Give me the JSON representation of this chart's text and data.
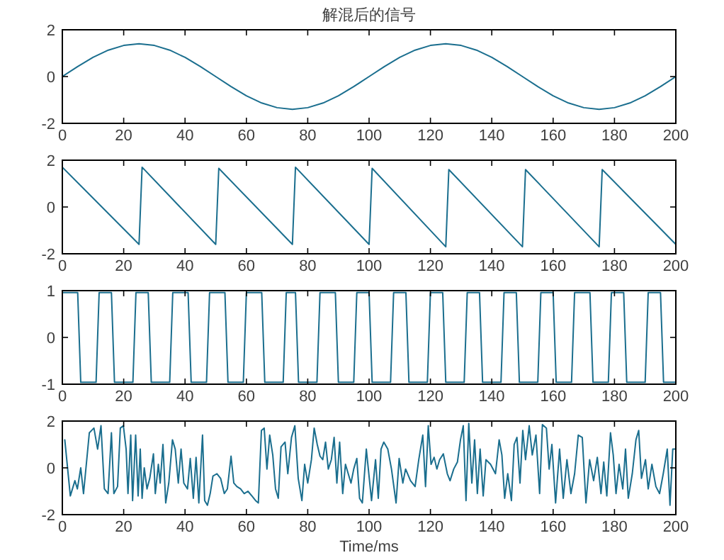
{
  "chart_data": [
    {
      "type": "line",
      "title": "解混后的信号",
      "color": "#1a6e8e",
      "xlim": [
        0,
        200
      ],
      "ylim": [
        -2,
        2
      ],
      "xticks": [
        0,
        20,
        40,
        60,
        80,
        100,
        120,
        140,
        160,
        180,
        200
      ],
      "yticks": [
        -2,
        0,
        2
      ],
      "x": [
        0,
        5,
        10,
        15,
        20,
        25,
        30,
        35,
        40,
        45,
        50,
        55,
        60,
        65,
        70,
        75,
        80,
        85,
        90,
        95,
        100,
        105,
        110,
        115,
        120,
        125,
        130,
        135,
        140,
        145,
        150,
        155,
        160,
        165,
        170,
        175,
        180,
        185,
        190,
        195,
        200
      ],
      "values": [
        0,
        0.43,
        0.82,
        1.13,
        1.33,
        1.4,
        1.33,
        1.13,
        0.82,
        0.43,
        0,
        -0.43,
        -0.82,
        -1.13,
        -1.33,
        -1.4,
        -1.33,
        -1.13,
        -0.82,
        -0.43,
        0,
        0.43,
        0.82,
        1.13,
        1.33,
        1.4,
        1.33,
        1.13,
        0.82,
        0.43,
        0,
        -0.43,
        -0.82,
        -1.13,
        -1.33,
        -1.4,
        -1.33,
        -1.13,
        -0.82,
        -0.43,
        0
      ]
    },
    {
      "type": "line",
      "color": "#1a6e8e",
      "xlim": [
        0,
        200
      ],
      "ylim": [
        -2,
        2
      ],
      "xticks": [
        0,
        20,
        40,
        60,
        80,
        100,
        120,
        140,
        160,
        180,
        200
      ],
      "yticks": [
        -2,
        0,
        2
      ],
      "x": [
        0,
        25,
        26,
        50,
        51,
        75,
        76,
        100,
        101,
        125,
        126,
        150,
        151,
        175,
        176,
        200
      ],
      "values": [
        1.7,
        -1.6,
        1.7,
        -1.6,
        1.65,
        -1.6,
        1.7,
        -1.6,
        1.65,
        -1.7,
        1.6,
        -1.7,
        1.6,
        -1.7,
        1.6,
        -1.6
      ]
    },
    {
      "type": "line",
      "color": "#1a6e8e",
      "xlim": [
        0,
        200
      ],
      "ylim": [
        -1,
        1
      ],
      "xticks": [
        0,
        20,
        40,
        60,
        80,
        100,
        120,
        140,
        160,
        180,
        200
      ],
      "yticks": [
        -1,
        0,
        1
      ],
      "x": [
        0,
        5,
        6,
        11,
        12,
        16,
        17,
        23,
        24,
        28,
        29,
        35,
        36,
        41,
        42,
        47,
        48,
        53,
        54,
        59,
        60,
        65,
        66,
        72,
        73,
        76,
        77,
        83,
        84,
        89,
        90,
        95,
        96,
        100,
        101,
        107,
        108,
        112,
        113,
        119,
        120,
        124,
        125,
        131,
        132,
        136,
        137,
        143,
        144,
        148,
        149,
        155,
        156,
        160,
        161,
        166,
        167,
        172,
        173,
        178,
        179,
        183,
        184,
        190,
        191,
        195,
        196,
        198,
        199,
        200
      ],
      "values": [
        0.96,
        0.96,
        -0.96,
        -0.96,
        0.96,
        0.96,
        -0.96,
        -0.96,
        0.96,
        0.96,
        -0.96,
        -0.96,
        0.96,
        0.96,
        -0.96,
        -0.96,
        0.96,
        0.96,
        -0.96,
        -0.96,
        0.96,
        0.96,
        -0.96,
        -0.96,
        0.96,
        0.96,
        -0.96,
        -0.96,
        0.96,
        0.96,
        -0.96,
        -0.96,
        0.96,
        0.96,
        -0.96,
        -0.96,
        0.96,
        0.96,
        -0.96,
        -0.96,
        0.96,
        0.96,
        -0.96,
        -0.96,
        0.96,
        0.96,
        -0.96,
        -0.96,
        0.96,
        0.96,
        -0.96,
        -0.96,
        0.96,
        0.96,
        -0.96,
        -0.96,
        0.96,
        0.96,
        -0.96,
        -0.96,
        0.96,
        0.96,
        -0.96,
        -0.96,
        0.96,
        0.96,
        -0.96,
        -0.96,
        -0.96,
        -0.96
      ]
    },
    {
      "type": "line",
      "xlabel": "Time/ms",
      "color": "#1a6e8e",
      "xlim": [
        0,
        200
      ],
      "ylim": [
        -2,
        2
      ],
      "xticks": [
        0,
        20,
        40,
        60,
        80,
        100,
        120,
        140,
        160,
        180,
        200
      ],
      "yticks": [
        -2,
        0,
        2
      ],
      "x": [
        0.8,
        2.6,
        4.1,
        4.9,
        6.0,
        6.9,
        8.8,
        10.3,
        11.5,
        12.6,
        13.7,
        14.9,
        16.0,
        16.8,
        18.0,
        18.9,
        19.9,
        20.8,
        21.4,
        22.3,
        22.9,
        23.9,
        24.7,
        25.4,
        26.0,
        26.7,
        27.6,
        28.5,
        29.7,
        30.3,
        31.3,
        31.9,
        32.8,
        33.7,
        34.7,
        35.9,
        36.8,
        37.8,
        38.7,
        39.6,
        40.8,
        41.7,
        42.7,
        43.6,
        44.5,
        45.7,
        46.4,
        47.3,
        48.2,
        49.1,
        50.4,
        51.6,
        52.8,
        53.8,
        55.0,
        55.9,
        56.9,
        58.1,
        59.3,
        60.5,
        61.8,
        63.0,
        63.9,
        64.9,
        65.8,
        66.7,
        67.6,
        68.6,
        69.5,
        70.4,
        71.3,
        72.6,
        73.5,
        74.7,
        75.8,
        76.9,
        78.1,
        79.0,
        80.0,
        81.2,
        82.1,
        83.1,
        84.0,
        84.9,
        85.8,
        86.7,
        87.7,
        88.6,
        89.5,
        90.4,
        91.4,
        92.3,
        93.2,
        94.1,
        95.0,
        96.0,
        96.9,
        97.8,
        99.1,
        100.8,
        102.1,
        103.0,
        103.9,
        104.8,
        106.1,
        107.3,
        108.8,
        109.8,
        111.0,
        111.9,
        113.5,
        115.0,
        116.2,
        117.5,
        118.4,
        119.3,
        120.2,
        121.2,
        122.1,
        123.0,
        124.2,
        125.5,
        126.4,
        127.6,
        128.8,
        129.8,
        130.7,
        131.6,
        132.5,
        133.5,
        134.4,
        135.3,
        136.2,
        137.2,
        138.1,
        139.6,
        141.2,
        142.4,
        143.3,
        144.2,
        145.2,
        146.4,
        147.3,
        148.2,
        149.2,
        150.1,
        151.0,
        152.2,
        153.2,
        154.4,
        155.6,
        156.5,
        157.8,
        158.7,
        159.6,
        160.8,
        162.1,
        163.3,
        164.5,
        165.8,
        167.0,
        168.2,
        169.5,
        170.7,
        171.9,
        173.2,
        174.4,
        175.6,
        176.5,
        177.5,
        178.7,
        179.6,
        180.5,
        181.5,
        182.7,
        183.6,
        184.5,
        185.8,
        187.0,
        187.9,
        188.8,
        190.1,
        191.0,
        192.2,
        193.5,
        194.7,
        195.9,
        197.2,
        198.1,
        199.0,
        200
      ],
      "values": [
        1.2,
        -1.2,
        -0.55,
        -0.9,
        0,
        -1.1,
        1.5,
        1.7,
        0.8,
        1.8,
        -0.9,
        -1.1,
        1.5,
        -1.1,
        -0.8,
        1.7,
        1.8,
        0.8,
        -1.1,
        1.4,
        -1.4,
        1.4,
        -1.2,
        0.8,
        -1.3,
        0,
        -0.9,
        -0.45,
        0.6,
        -1.1,
        0.15,
        -0.65,
        1.0,
        -1.5,
        -0.65,
        1.2,
        0.8,
        -0.65,
        0.8,
        -0.65,
        -0.9,
        0.4,
        -1.3,
        0.45,
        -1.5,
        1.4,
        -1.4,
        -1.6,
        -1.1,
        -0.35,
        -0.25,
        -0.45,
        -1.1,
        -0.9,
        0.5,
        -0.65,
        -0.8,
        -0.9,
        -1.1,
        -1.0,
        -1.2,
        -1.4,
        -1.5,
        1.6,
        1.7,
        -0.05,
        1.4,
        0.55,
        -0.9,
        -1.3,
        0.9,
        1.1,
        -0.25,
        1.3,
        1.8,
        -0.45,
        -1.4,
        0.15,
        -0.65,
        0.35,
        1.7,
        1.0,
        0.5,
        0.35,
        1.1,
        -0.05,
        0.35,
        1.3,
        -0.65,
        1.1,
        -1.1,
        0.15,
        -0.25,
        -0.65,
        -0.05,
        0.4,
        -1.3,
        -1.5,
        0.8,
        -1.4,
        0.35,
        -1.3,
        0.8,
        1.1,
        0.8,
        -0.05,
        -1.5,
        0.4,
        -0.65,
        -0.05,
        -0.55,
        -0.8,
        0.35,
        1.4,
        -0.8,
        1.8,
        0.15,
        0.45,
        -0.05,
        0.35,
        0.6,
        -0.25,
        -0.55,
        -0.05,
        0.25,
        1.2,
        1.8,
        -1.4,
        1.9,
        -0.65,
        1.2,
        -1.1,
        0.8,
        -1.2,
        0.35,
        0.15,
        -0.25,
        1.2,
        0.55,
        -1.3,
        -0.25,
        -1.4,
        1.0,
        1.3,
        -0.65,
        1.6,
        0.35,
        1.8,
        0.55,
        1.4,
        -1.1,
        1.85,
        1.7,
        -0.05,
        1.0,
        -1.5,
        0.8,
        -1.3,
        0.35,
        -1.1,
        -0.25,
        1.4,
        1.3,
        -1.5,
        0.35,
        -0.55,
        0.45,
        -1.1,
        0.25,
        -1.2,
        1.5,
        0.55,
        -1.1,
        0.15,
        -0.9,
        0.8,
        -1.3,
        -0.25,
        1.2,
        1.6,
        -0.45,
        0.35,
        -0.9,
        0.15,
        -0.8,
        -1.1,
        -0.25,
        0.8,
        -1.6,
        0.8,
        0.8
      ]
    }
  ]
}
